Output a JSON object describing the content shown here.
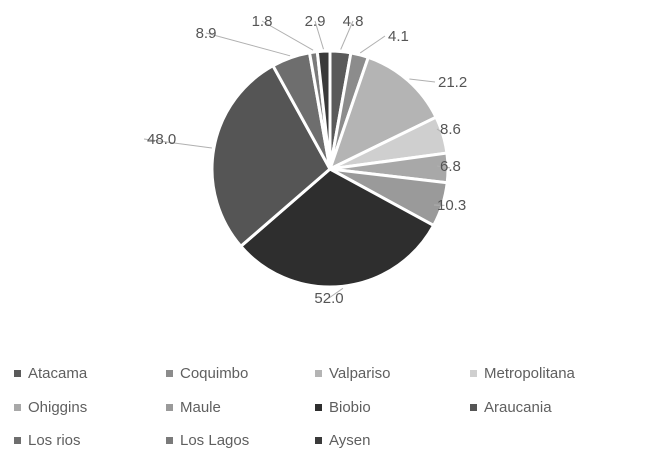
{
  "chart_data": {
    "type": "pie",
    "categories": [
      "Atacama",
      "Coquimbo",
      "Valpariso",
      "Metropolitana",
      "Ohiggins",
      "Maule",
      "Biobio",
      "Araucania",
      "Los rios",
      "Los Lagos",
      "Aysen"
    ],
    "values": [
      4.8,
      4.1,
      21.2,
      8.6,
      6.8,
      10.3,
      52.0,
      48.0,
      8.9,
      1.8,
      2.9
    ],
    "data_labels": [
      "4.8",
      "4.1",
      "21.2",
      "8.6",
      "6.8",
      "10.3",
      "52.0",
      "48.0",
      "8.9",
      "1.8",
      "2.9"
    ],
    "colors": [
      "#5a5a5a",
      "#8c8c8c",
      "#b4b4b4",
      "#cfcfcf",
      "#a8a8a8",
      "#9a9a9a",
      "#2e2e2e",
      "#555555",
      "#6e6e6e",
      "#7a7a7a",
      "#3a3a3a"
    ],
    "legend_position": "bottom",
    "start_angle_deg": 90,
    "direction": "clockwise"
  }
}
